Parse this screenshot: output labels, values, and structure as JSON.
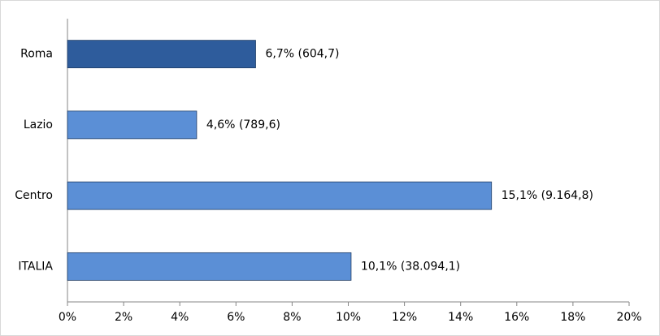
{
  "chart_data": {
    "type": "hbar",
    "categories": [
      "Roma",
      "Lazio",
      "Centro",
      "ITALIA"
    ],
    "values": [
      6.7,
      4.6,
      15.1,
      10.1
    ],
    "value_labels": [
      "6,7% (604,7)",
      "4,6% (789,6)",
      "15,1% (9.164,8)",
      "10,1% (38.094,1)"
    ],
    "colors": [
      "#2e5c9c",
      "#5b8fd6",
      "#5b8fd6",
      "#5b8fd6"
    ],
    "xlim": [
      0,
      20
    ],
    "xticks": [
      {
        "value": 0,
        "label": "0%"
      },
      {
        "value": 2,
        "label": "2%"
      },
      {
        "value": 4,
        "label": "4%"
      },
      {
        "value": 6,
        "label": "6%"
      },
      {
        "value": 8,
        "label": "8%"
      },
      {
        "value": 10,
        "label": "10%"
      },
      {
        "value": 12,
        "label": "12%"
      },
      {
        "value": 14,
        "label": "14%"
      },
      {
        "value": 16,
        "label": "16%"
      },
      {
        "value": 18,
        "label": "18%"
      },
      {
        "value": 20,
        "label": "20%"
      }
    ],
    "grid": false
  }
}
